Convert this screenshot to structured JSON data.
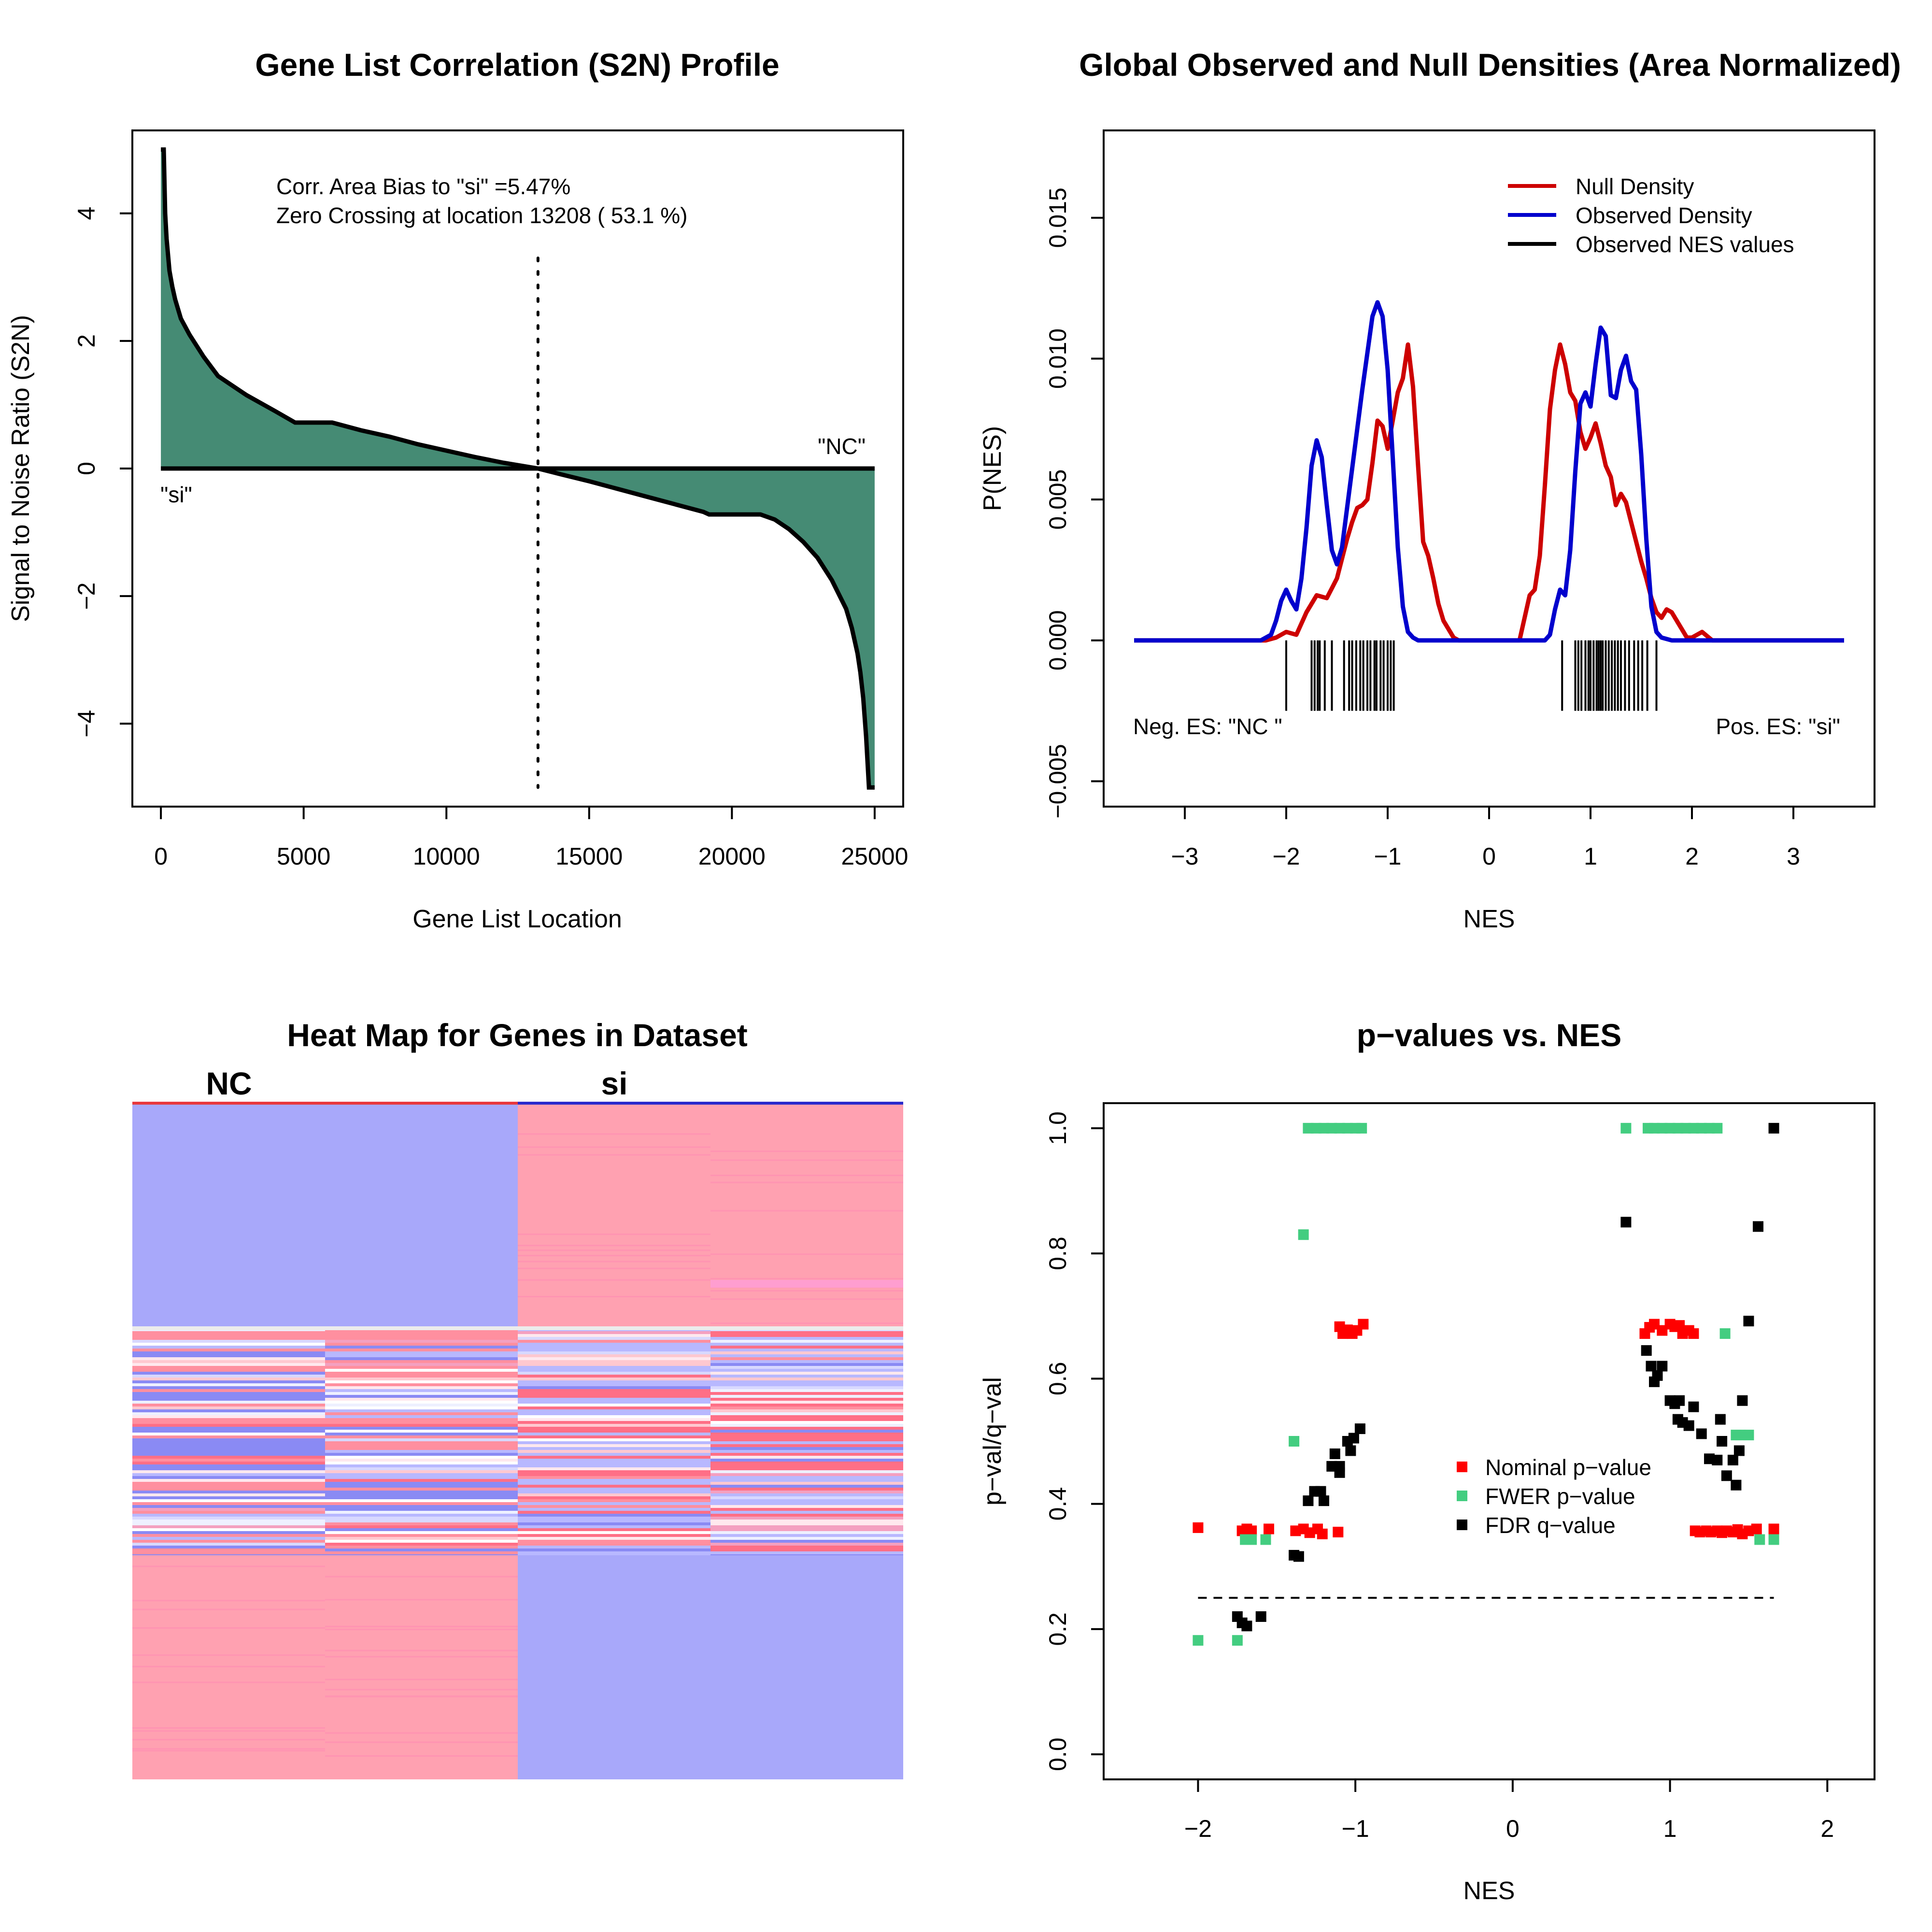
{
  "chart_data": [
    {
      "type": "area",
      "title": "Gene List Correlation (S2N) Profile",
      "xlabel": "Gene List Location",
      "ylabel": "Signal to Noise Ratio (S2N)",
      "xlim": [
        0,
        25000
      ],
      "ylim": [
        -5,
        5
      ],
      "xticks": [
        0,
        5000,
        10000,
        15000,
        20000,
        25000
      ],
      "yticks": [
        -4,
        -2,
        0,
        2,
        4
      ],
      "fill_color": "#458b74",
      "line_color": "#000000",
      "annotations": [
        "Corr. Area Bias to \"si\" =5.47%",
        "Zero Crossing at location  13208  ( 53.1  %)"
      ],
      "left_label": "\"si\"",
      "right_label": "\"NC\"",
      "zero_crossing": 13208,
      "curve": {
        "x": [
          0,
          50,
          100,
          150,
          200,
          300,
          400,
          500,
          700,
          1000,
          1500,
          2000,
          3000,
          4000,
          4700,
          5000,
          5500,
          6000,
          7000,
          8000,
          9000,
          10000,
          11000,
          12000,
          13208,
          14000,
          15000,
          16000,
          17000,
          18000,
          19000,
          19200,
          20000,
          21000,
          21500,
          22000,
          22500,
          23000,
          23500,
          24000,
          24200,
          24400,
          24500,
          24600,
          24700,
          24750,
          24800,
          24900,
          25000
        ],
        "y": [
          5,
          5,
          5,
          4.0,
          3.6,
          3.1,
          2.85,
          2.65,
          2.35,
          2.1,
          1.75,
          1.45,
          1.15,
          0.9,
          0.72,
          0.72,
          0.72,
          0.72,
          0.6,
          0.5,
          0.38,
          0.28,
          0.18,
          0.09,
          0,
          -0.09,
          -0.2,
          -0.32,
          -0.44,
          -0.56,
          -0.68,
          -0.72,
          -0.72,
          -0.72,
          -0.8,
          -0.95,
          -1.15,
          -1.4,
          -1.75,
          -2.2,
          -2.5,
          -2.9,
          -3.2,
          -3.6,
          -4.2,
          -4.6,
          -5,
          -5,
          -5
        ]
      }
    },
    {
      "type": "line",
      "title": "Global Observed and Null Densities (Area Normalized)",
      "xlabel": "NES",
      "ylabel": "P(NES)",
      "xlim": [
        -3.5,
        3.5
      ],
      "ylim": [
        -0.005,
        0.017
      ],
      "xticks": [
        -3,
        -2,
        -1,
        0,
        1,
        2,
        3
      ],
      "yticks": [
        -0.005,
        0.0,
        0.005,
        0.01,
        0.015
      ],
      "ytick_labels": [
        "−0.005",
        "0.000",
        "0.005",
        "0.010",
        "0.015"
      ],
      "xtick_labels": [
        "−3",
        "−2",
        "−1",
        "0",
        "1",
        "2",
        "3"
      ],
      "legend": [
        "Null Density",
        "Observed Density",
        "Observed NES values"
      ],
      "legend_position": "top-right",
      "neg_label": "Neg. ES: \"NC \"",
      "pos_label": "Pos. ES: \"si\"",
      "series": [
        {
          "name": "Null Density",
          "color": "#cd0000",
          "x": [
            -3.5,
            -2.2,
            -2.1,
            -2.0,
            -1.9,
            -1.8,
            -1.7,
            -1.6,
            -1.5,
            -1.4,
            -1.35,
            -1.3,
            -1.25,
            -1.2,
            -1.15,
            -1.1,
            -1.05,
            -1.0,
            -0.95,
            -0.9,
            -0.85,
            -0.8,
            -0.75,
            -0.7,
            -0.65,
            -0.6,
            -0.55,
            -0.5,
            -0.45,
            -0.4,
            -0.35,
            -0.3,
            0.3,
            0.4,
            0.45,
            0.5,
            0.55,
            0.6,
            0.65,
            0.7,
            0.75,
            0.8,
            0.85,
            0.9,
            0.95,
            1.0,
            1.05,
            1.1,
            1.15,
            1.2,
            1.25,
            1.3,
            1.35,
            1.4,
            1.45,
            1.5,
            1.55,
            1.6,
            1.65,
            1.7,
            1.75,
            1.8,
            1.85,
            1.9,
            1.95,
            2.0,
            2.1,
            2.2,
            3.5
          ],
          "y": [
            0,
            0,
            0.0001,
            0.0003,
            0.0002,
            0.001,
            0.0016,
            0.0015,
            0.0022,
            0.0036,
            0.0042,
            0.0047,
            0.0048,
            0.005,
            0.0063,
            0.0078,
            0.0076,
            0.0068,
            0.0078,
            0.0088,
            0.0093,
            0.0105,
            0.009,
            0.0062,
            0.0035,
            0.003,
            0.0022,
            0.0013,
            0.0007,
            0.0004,
            0.0001,
            0,
            0,
            0.0016,
            0.0018,
            0.003,
            0.0055,
            0.0082,
            0.0096,
            0.0105,
            0.0098,
            0.0088,
            0.0085,
            0.0074,
            0.0068,
            0.0072,
            0.0077,
            0.007,
            0.0062,
            0.0058,
            0.0048,
            0.0052,
            0.0049,
            0.0042,
            0.0035,
            0.0028,
            0.0022,
            0.0015,
            0.001,
            0.0008,
            0.0011,
            0.001,
            0.0007,
            0.0004,
            0.0001,
            0.0001,
            0.0003,
            0,
            0
          ]
        },
        {
          "name": "Observed Density",
          "color": "#0000cd",
          "x": [
            -3.5,
            -2.25,
            -2.15,
            -2.1,
            -2.05,
            -2.0,
            -1.95,
            -1.9,
            -1.85,
            -1.8,
            -1.75,
            -1.7,
            -1.65,
            -1.6,
            -1.55,
            -1.5,
            -1.45,
            -1.4,
            -1.35,
            -1.3,
            -1.25,
            -1.2,
            -1.15,
            -1.1,
            -1.05,
            -1.0,
            -0.95,
            -0.9,
            -0.85,
            -0.8,
            -0.75,
            -0.7,
            -0.6,
            0.55,
            0.6,
            0.65,
            0.7,
            0.75,
            0.8,
            0.85,
            0.9,
            0.95,
            1.0,
            1.05,
            1.1,
            1.15,
            1.2,
            1.25,
            1.3,
            1.35,
            1.4,
            1.45,
            1.5,
            1.55,
            1.6,
            1.65,
            1.7,
            1.8,
            3.5
          ],
          "y": [
            0,
            0,
            0.0002,
            0.0007,
            0.0014,
            0.0018,
            0.0014,
            0.0011,
            0.0022,
            0.004,
            0.0062,
            0.0071,
            0.0065,
            0.0048,
            0.0032,
            0.0027,
            0.0033,
            0.0047,
            0.0061,
            0.0075,
            0.0089,
            0.0102,
            0.0115,
            0.012,
            0.0115,
            0.0096,
            0.0065,
            0.0033,
            0.0012,
            0.0003,
            0.0001,
            0,
            0,
            0,
            0.0002,
            0.0011,
            0.0018,
            0.0016,
            0.0032,
            0.006,
            0.0084,
            0.0088,
            0.0083,
            0.0098,
            0.0111,
            0.0108,
            0.0087,
            0.0086,
            0.0096,
            0.0101,
            0.0092,
            0.0089,
            0.0066,
            0.0036,
            0.0012,
            0.0003,
            0.0001,
            0,
            0
          ]
        }
      ],
      "observed_nes_values": [
        -2.0,
        -1.75,
        -1.72,
        -1.69,
        -1.67,
        -1.62,
        -1.55,
        -1.43,
        -1.38,
        -1.35,
        -1.31,
        -1.27,
        -1.24,
        -1.2,
        -1.17,
        -1.13,
        -1.11,
        -1.07,
        -1.04,
        -1.0,
        -0.97,
        -0.94,
        0.72,
        0.85,
        0.88,
        0.91,
        0.95,
        0.98,
        1.0,
        1.03,
        1.06,
        1.08,
        1.1,
        1.12,
        1.15,
        1.18,
        1.21,
        1.24,
        1.27,
        1.3,
        1.34,
        1.38,
        1.43,
        1.47,
        1.51,
        1.56,
        1.65
      ]
    },
    {
      "type": "heatmap",
      "title": "Heat Map for Genes in Dataset",
      "column_groups": [
        "NC",
        "si"
      ],
      "columns": 4,
      "group_colors": [
        "#e8383d",
        "#2a2acd"
      ],
      "high_color": "#ffa1b1",
      "low_color": "#a8a8fa",
      "bands": [
        {
          "rows": "top",
          "values": [
            "low",
            "low",
            "high",
            "high"
          ]
        },
        {
          "rows": "middle",
          "values": [
            "mixed",
            "mixed",
            "mixed",
            "mixed"
          ]
        },
        {
          "rows": "bottom",
          "values": [
            "high",
            "high",
            "low",
            "low"
          ]
        }
      ]
    },
    {
      "type": "scatter",
      "title": "p−values vs. NES",
      "xlabel": "NES",
      "ylabel": "p−val/q−val",
      "xlim": [
        -2.2,
        2.2
      ],
      "ylim": [
        0,
        1.0
      ],
      "xticks": [
        -2,
        -1,
        0,
        1,
        2
      ],
      "xtick_labels": [
        "−2",
        "−1",
        "0",
        "1",
        "2"
      ],
      "yticks": [
        0.0,
        0.2,
        0.4,
        0.6,
        0.8,
        1.0
      ],
      "ytick_labels": [
        "0.0",
        "0.2",
        "0.4",
        "0.6",
        "0.8",
        "1.0"
      ],
      "threshold_line": 0.25,
      "legend_position": "middle-right",
      "series": [
        {
          "name": "Nominal p−value",
          "color": "#ff0000",
          "points": [
            [
              -2.0,
              0.362
            ],
            [
              -1.72,
              0.357
            ],
            [
              -1.69,
              0.36
            ],
            [
              -1.66,
              0.357
            ],
            [
              -1.55,
              0.36
            ],
            [
              -1.38,
              0.357
            ],
            [
              -1.33,
              0.36
            ],
            [
              -1.29,
              0.354
            ],
            [
              -1.24,
              0.36
            ],
            [
              -1.21,
              0.352
            ],
            [
              -1.11,
              0.355
            ],
            [
              -1.1,
              0.683
            ],
            [
              -1.08,
              0.672
            ],
            [
              -1.05,
              0.678
            ],
            [
              -1.02,
              0.672
            ],
            [
              -0.99,
              0.677
            ],
            [
              -0.95,
              0.687
            ],
            [
              0.84,
              0.672
            ],
            [
              0.87,
              0.682
            ],
            [
              0.9,
              0.687
            ],
            [
              0.95,
              0.677
            ],
            [
              1.0,
              0.687
            ],
            [
              1.03,
              0.683
            ],
            [
              1.06,
              0.685
            ],
            [
              1.08,
              0.672
            ],
            [
              1.12,
              0.677
            ],
            [
              1.15,
              0.672
            ],
            [
              1.16,
              0.357
            ],
            [
              1.19,
              0.355
            ],
            [
              1.23,
              0.357
            ],
            [
              1.26,
              0.355
            ],
            [
              1.3,
              0.357
            ],
            [
              1.33,
              0.354
            ],
            [
              1.36,
              0.357
            ],
            [
              1.4,
              0.355
            ],
            [
              1.43,
              0.359
            ],
            [
              1.46,
              0.352
            ],
            [
              1.5,
              0.357
            ],
            [
              1.55,
              0.36
            ],
            [
              1.66,
              0.36
            ]
          ]
        },
        {
          "name": "FWER p−value",
          "color": "#43cd80",
          "points": [
            [
              -2.0,
              0.182
            ],
            [
              -1.75,
              0.182
            ],
            [
              -1.7,
              0.343
            ],
            [
              -1.66,
              0.343
            ],
            [
              -1.57,
              0.343
            ],
            [
              -1.39,
              0.5
            ],
            [
              -1.33,
              0.83
            ],
            [
              -1.3,
              1.0
            ],
            [
              -1.25,
              1.0
            ],
            [
              -1.2,
              1.0
            ],
            [
              -1.15,
              1.0
            ],
            [
              -1.1,
              1.0
            ],
            [
              -1.05,
              1.0
            ],
            [
              -1.0,
              1.0
            ],
            [
              -0.96,
              1.0
            ],
            [
              0.72,
              1.0
            ],
            [
              0.86,
              1.0
            ],
            [
              0.9,
              1.0
            ],
            [
              0.95,
              1.0
            ],
            [
              1.0,
              1.0
            ],
            [
              1.05,
              1.0
            ],
            [
              1.1,
              1.0
            ],
            [
              1.15,
              1.0
            ],
            [
              1.2,
              1.0
            ],
            [
              1.25,
              1.0
            ],
            [
              1.3,
              1.0
            ],
            [
              1.35,
              0.672
            ],
            [
              1.42,
              0.51
            ],
            [
              1.45,
              0.51
            ],
            [
              1.5,
              0.51
            ],
            [
              1.57,
              0.343
            ],
            [
              1.66,
              0.343
            ]
          ]
        },
        {
          "name": "FDR q−value",
          "color": "#000000",
          "points": [
            [
              -1.75,
              0.22
            ],
            [
              -1.72,
              0.21
            ],
            [
              -1.69,
              0.205
            ],
            [
              -1.6,
              0.22
            ],
            [
              -1.39,
              0.318
            ],
            [
              -1.36,
              0.316
            ],
            [
              -1.3,
              0.405
            ],
            [
              -1.26,
              0.42
            ],
            [
              -1.22,
              0.42
            ],
            [
              -1.2,
              0.405
            ],
            [
              -1.15,
              0.46
            ],
            [
              -1.13,
              0.48
            ],
            [
              -1.1,
              0.46
            ],
            [
              -1.1,
              0.45
            ],
            [
              -1.05,
              0.5
            ],
            [
              -1.03,
              0.485
            ],
            [
              -1.01,
              0.505
            ],
            [
              -0.97,
              0.52
            ],
            [
              0.72,
              0.85
            ],
            [
              0.85,
              0.645
            ],
            [
              0.88,
              0.62
            ],
            [
              0.9,
              0.595
            ],
            [
              0.92,
              0.605
            ],
            [
              0.95,
              0.62
            ],
            [
              1.0,
              0.565
            ],
            [
              1.03,
              0.56
            ],
            [
              1.05,
              0.535
            ],
            [
              1.06,
              0.565
            ],
            [
              1.08,
              0.53
            ],
            [
              1.12,
              0.525
            ],
            [
              1.15,
              0.555
            ],
            [
              1.2,
              0.512
            ],
            [
              1.25,
              0.472
            ],
            [
              1.3,
              0.47
            ],
            [
              1.32,
              0.535
            ],
            [
              1.33,
              0.5
            ],
            [
              1.36,
              0.445
            ],
            [
              1.4,
              0.47
            ],
            [
              1.42,
              0.43
            ],
            [
              1.44,
              0.485
            ],
            [
              1.46,
              0.565
            ],
            [
              1.5,
              0.692
            ],
            [
              1.56,
              0.843
            ],
            [
              1.66,
              1.0
            ]
          ]
        }
      ]
    }
  ]
}
